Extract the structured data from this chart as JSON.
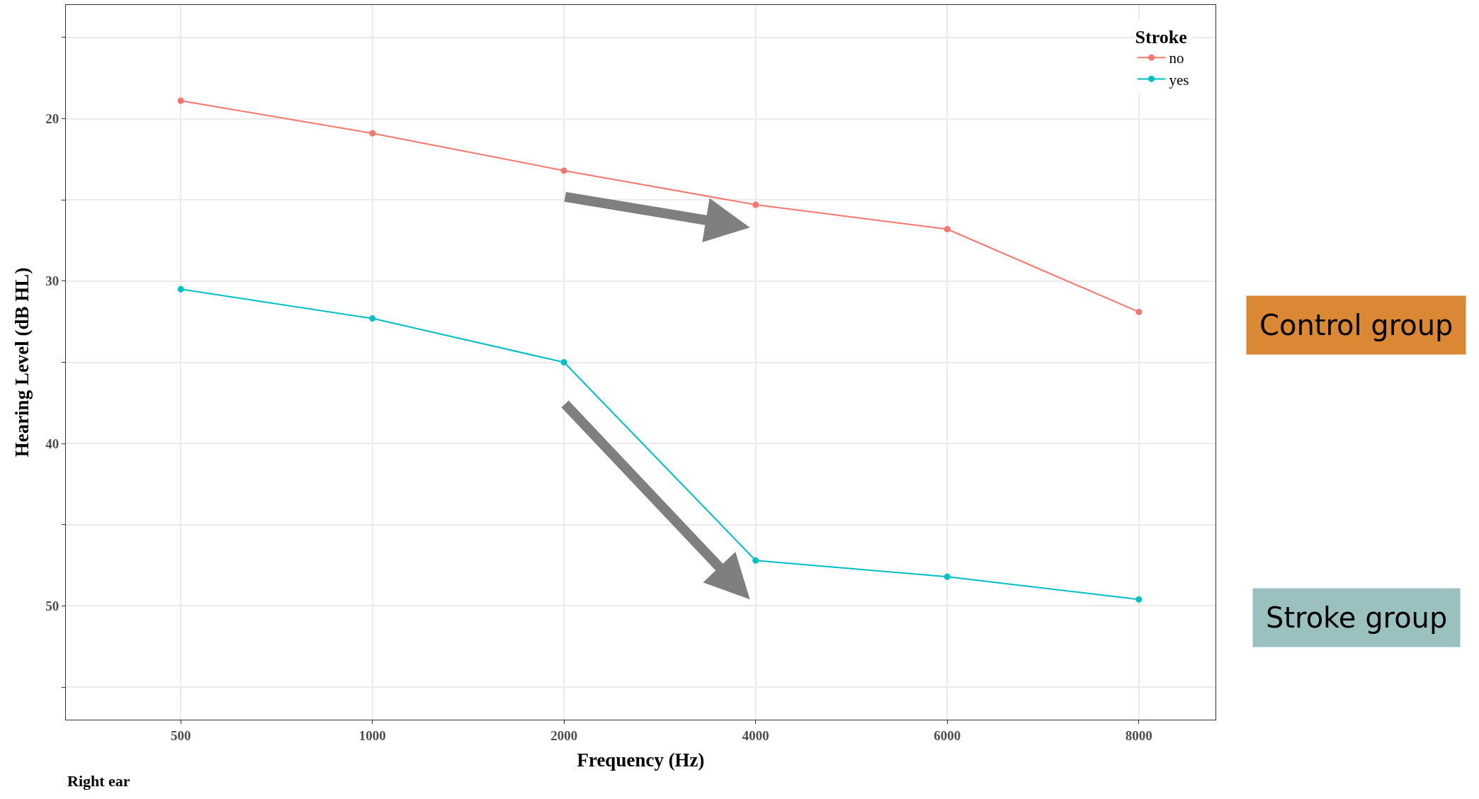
{
  "chart_data": {
    "type": "line",
    "xlabel": "Frequency (Hz)",
    "ylabel": "Hearing Level (dB HL)",
    "legend_title": "Stroke",
    "categories": [
      "500",
      "1000",
      "2000",
      "4000",
      "6000",
      "8000"
    ],
    "series": [
      {
        "name": "no",
        "color": "#f8766d",
        "values": [
          18.9,
          20.9,
          23.2,
          25.3,
          26.8,
          31.9
        ]
      },
      {
        "name": "yes",
        "color": "#00bfc4",
        "values": [
          30.5,
          32.3,
          35.0,
          47.2,
          48.2,
          49.6
        ]
      }
    ],
    "ylim": [
      57,
      13
    ],
    "yticks": [
      {
        "value": 15,
        "label": null
      },
      20,
      {
        "value": 25,
        "label": null
      },
      30,
      {
        "value": 35,
        "label": null
      },
      40,
      {
        "value": 45,
        "label": null
      },
      50,
      {
        "value": 55,
        "label": null
      }
    ],
    "grid": true,
    "legend": "top right",
    "marker": "circle",
    "line_style": "solid",
    "annotations": [
      "Control group",
      "Stroke group",
      "Right ear"
    ]
  }
}
